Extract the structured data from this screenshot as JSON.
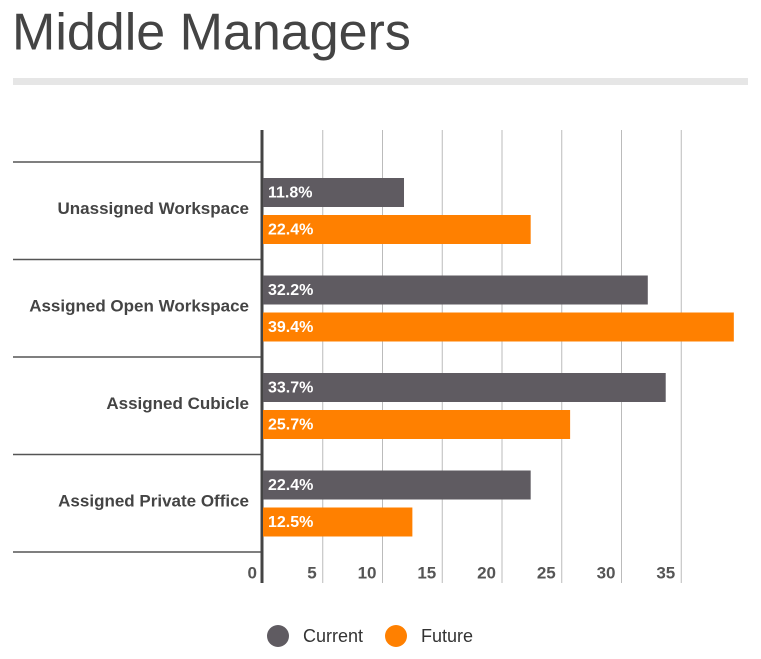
{
  "chart_data": {
    "type": "barh",
    "title": "Middle Managers",
    "categories": [
      "Unassigned Workspace",
      "Assigned Open Workspace",
      "Assigned Cubicle",
      "Assigned Private Office"
    ],
    "series": [
      {
        "name": "Current",
        "color": "#5f5b61",
        "values": [
          11.8,
          32.2,
          33.7,
          22.4
        ],
        "value_labels": [
          "11.8%",
          "32.2%",
          "33.7%",
          "22.4%"
        ]
      },
      {
        "name": "Future",
        "color": "#ff8000",
        "values": [
          22.4,
          39.4,
          25.7,
          12.5
        ],
        "value_labels": [
          "22.4%",
          "39.4%",
          "25.7%",
          "12.5%"
        ]
      }
    ],
    "xlim": [
      0,
      40
    ],
    "xticks": [
      0,
      5,
      10,
      15,
      20,
      25,
      30,
      35
    ],
    "grid": true
  }
}
